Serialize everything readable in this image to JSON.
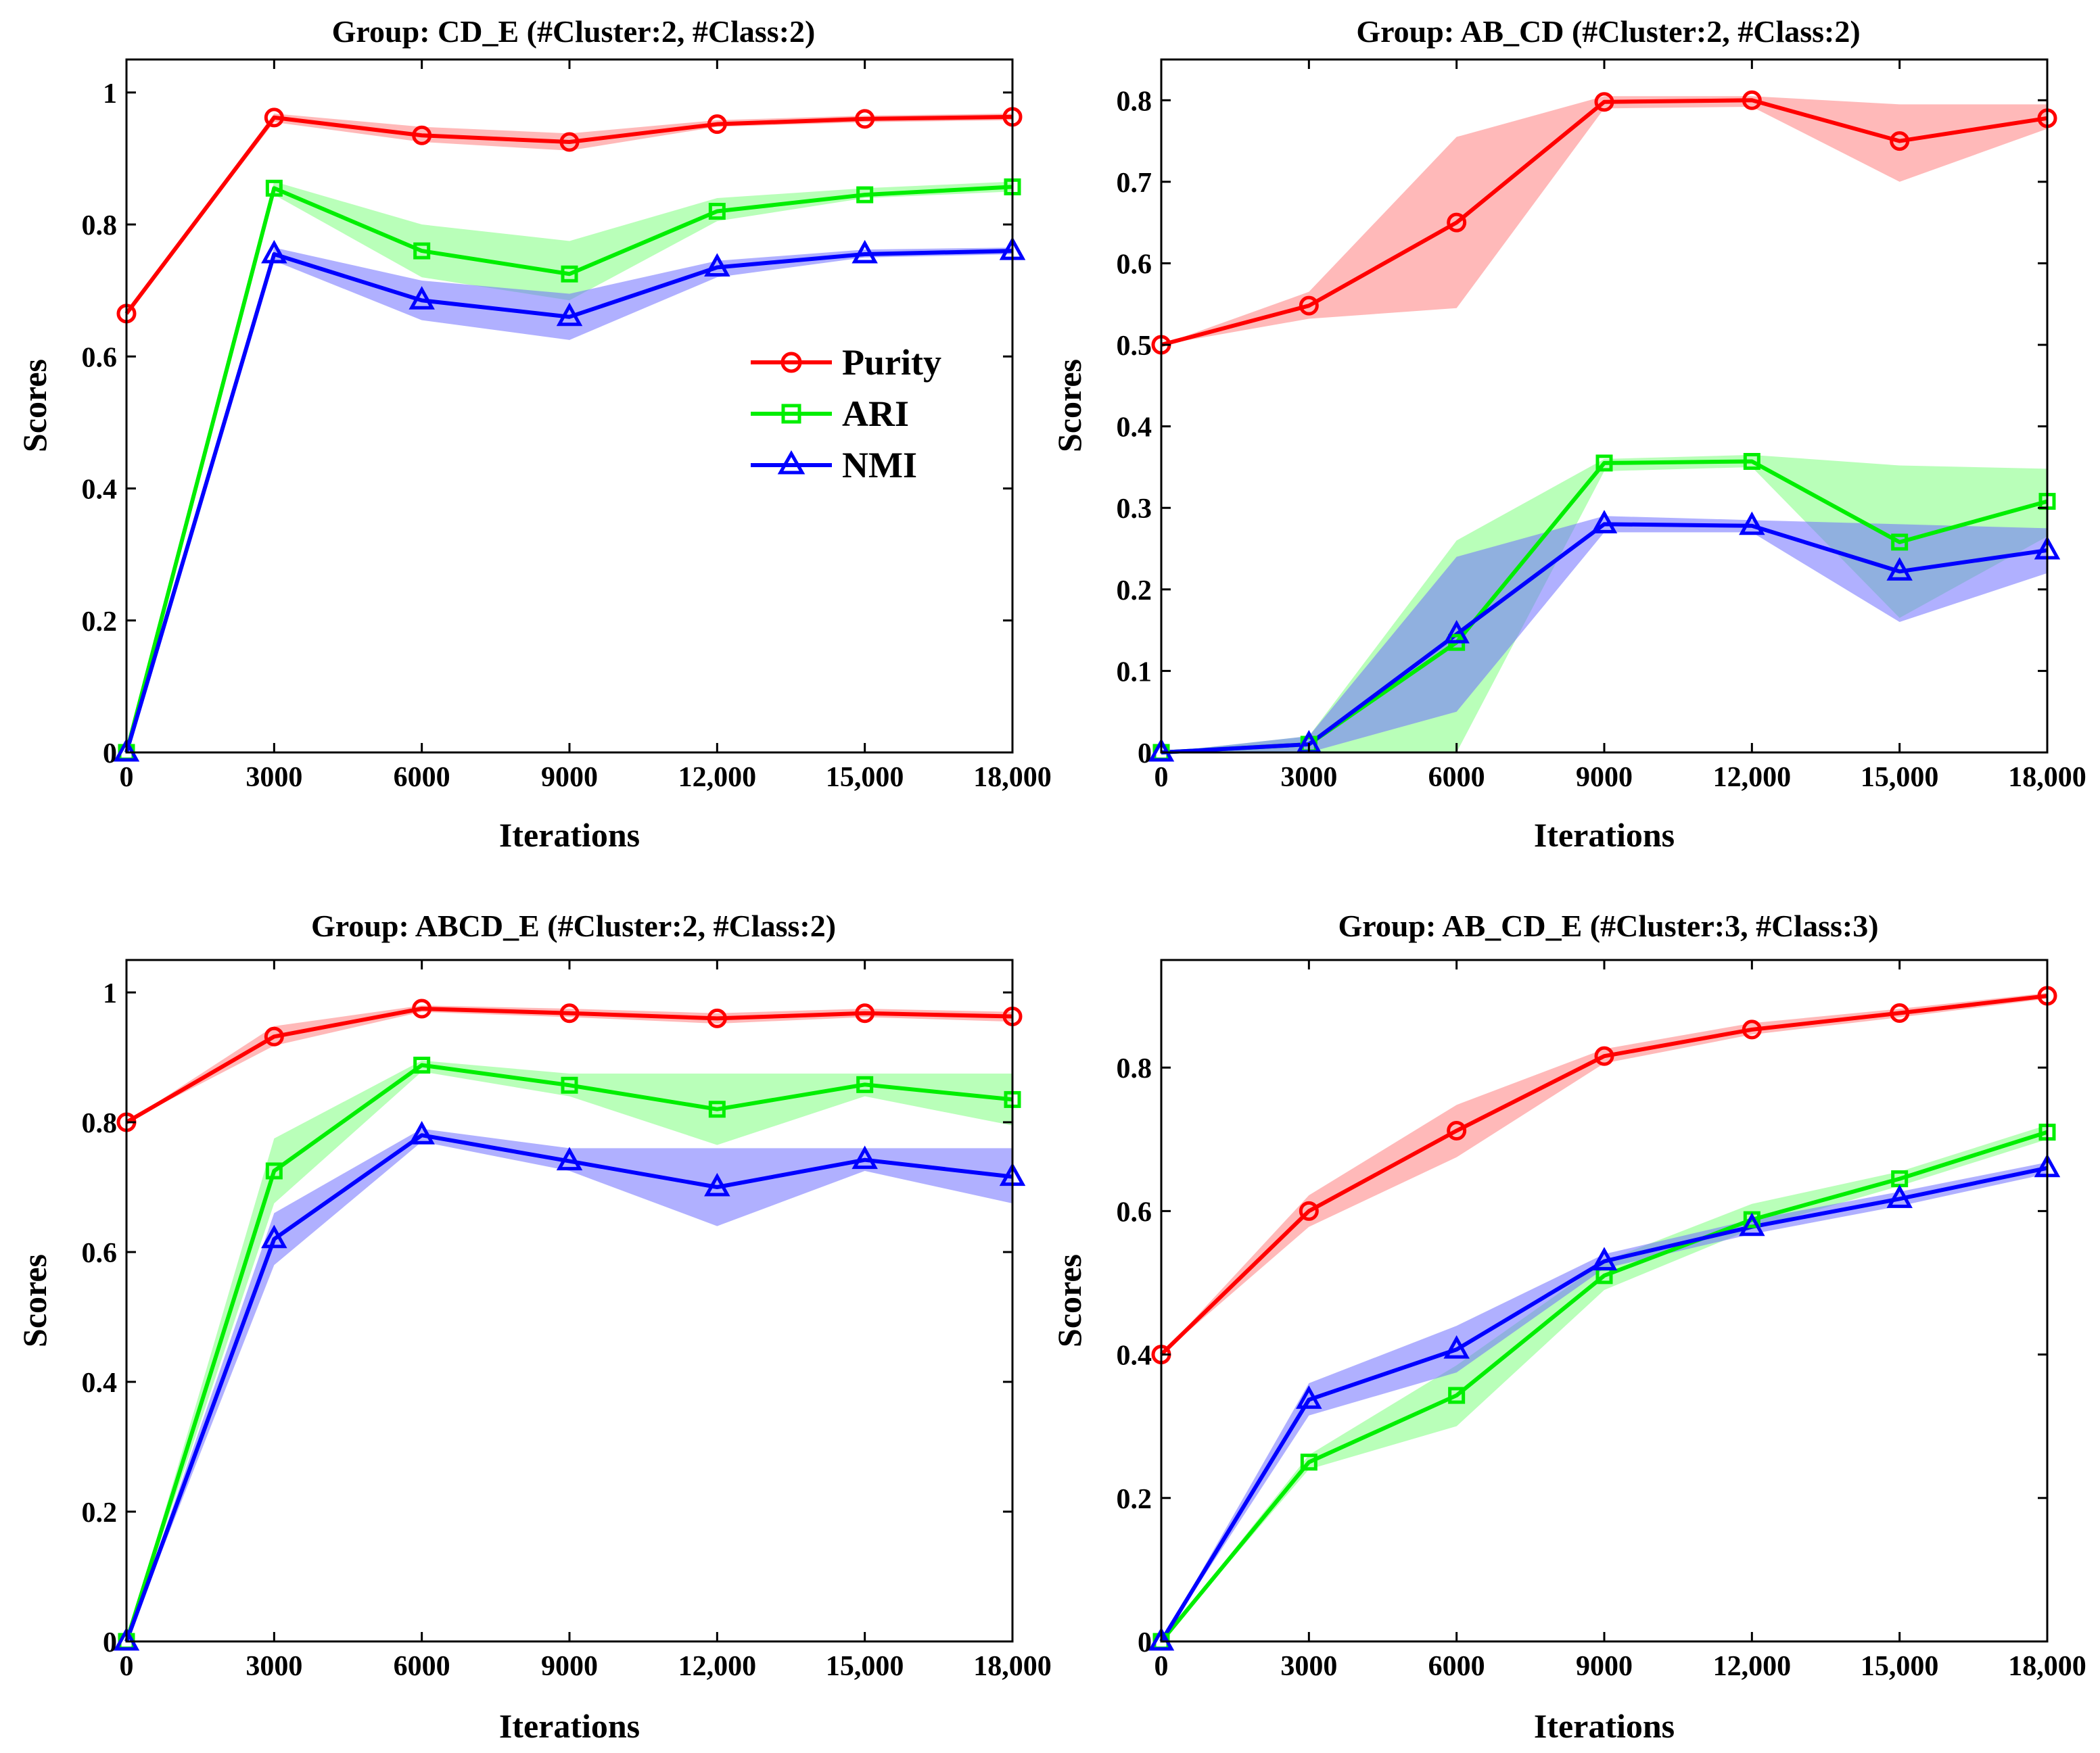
{
  "colors": {
    "purity": "#ff0000",
    "ari": "#00ee00",
    "nmi": "#0000ff",
    "purity_band": "#ff8080",
    "ari_band": "#80ff80",
    "nmi_band": "#7070ff"
  },
  "legend": {
    "purity": "Purity",
    "ari": "ARI",
    "nmi": "NMI"
  },
  "chart_data": [
    {
      "type": "line",
      "title": "Group: CD_E (#Cluster:2, #Class:2)",
      "xlabel": "Iterations",
      "ylabel": "Scores",
      "x": [
        0,
        3000,
        6000,
        9000,
        12000,
        15000,
        18000
      ],
      "xticklabels": [
        "0",
        "3000",
        "6000",
        "9000",
        "12,000",
        "15,000",
        "18,000"
      ],
      "xlim": [
        0,
        18000
      ],
      "ylim": [
        0,
        1.05
      ],
      "yticks": [
        0,
        0.2,
        0.4,
        0.6,
        0.8,
        1
      ],
      "yticklabels": [
        "0",
        "0.2",
        "0.4",
        "0.6",
        "0.8",
        "1"
      ],
      "legend_position": "center-right",
      "series": [
        {
          "name": "Purity",
          "key": "purity",
          "marker": "circle",
          "values": [
            0.665,
            0.962,
            0.935,
            0.925,
            0.952,
            0.96,
            0.963
          ],
          "lower": [
            0.665,
            0.955,
            0.925,
            0.912,
            0.948,
            0.955,
            0.958
          ],
          "upper": [
            0.665,
            0.968,
            0.948,
            0.938,
            0.958,
            0.965,
            0.968
          ]
        },
        {
          "name": "ARI",
          "key": "ari",
          "marker": "square",
          "values": [
            0,
            0.855,
            0.76,
            0.725,
            0.82,
            0.845,
            0.857
          ],
          "lower": [
            0,
            0.845,
            0.72,
            0.685,
            0.805,
            0.84,
            0.85
          ],
          "upper": [
            0,
            0.865,
            0.8,
            0.775,
            0.84,
            0.855,
            0.865
          ]
        },
        {
          "name": "NMI",
          "key": "nmi",
          "marker": "triangle",
          "values": [
            0,
            0.755,
            0.685,
            0.66,
            0.735,
            0.755,
            0.76
          ],
          "lower": [
            0,
            0.745,
            0.655,
            0.625,
            0.72,
            0.75,
            0.755
          ],
          "upper": [
            0,
            0.765,
            0.715,
            0.695,
            0.745,
            0.762,
            0.765
          ]
        }
      ]
    },
    {
      "type": "line",
      "title": "Group: AB_CD (#Cluster:2, #Class:2)",
      "xlabel": "Iterations",
      "ylabel": "Scores",
      "x": [
        0,
        3000,
        6000,
        9000,
        12000,
        15000,
        18000
      ],
      "xticklabels": [
        "0",
        "3000",
        "6000",
        "9000",
        "12,000",
        "15,000",
        "18,000"
      ],
      "xlim": [
        0,
        18000
      ],
      "ylim": [
        0,
        0.85
      ],
      "yticks": [
        0,
        0.1,
        0.2,
        0.3,
        0.4,
        0.5,
        0.6,
        0.7,
        0.8
      ],
      "yticklabels": [
        "0",
        "0.1",
        "0.2",
        "0.3",
        "0.4",
        "0.5",
        "0.6",
        "0.7",
        "0.8"
      ],
      "series": [
        {
          "name": "Purity",
          "key": "purity",
          "marker": "circle",
          "values": [
            0.5,
            0.548,
            0.65,
            0.798,
            0.8,
            0.75,
            0.778
          ],
          "lower": [
            0.5,
            0.532,
            0.545,
            0.79,
            0.792,
            0.7,
            0.765
          ],
          "upper": [
            0.5,
            0.565,
            0.755,
            0.805,
            0.805,
            0.795,
            0.795
          ]
        },
        {
          "name": "ARI",
          "key": "ari",
          "marker": "square",
          "values": [
            0,
            0.01,
            0.135,
            0.355,
            0.357,
            0.258,
            0.308
          ],
          "lower": [
            0,
            0,
            0,
            0.345,
            0.35,
            0.165,
            0.265
          ],
          "upper": [
            0,
            0.02,
            0.26,
            0.36,
            0.365,
            0.352,
            0.348
          ]
        },
        {
          "name": "NMI",
          "key": "nmi",
          "marker": "triangle",
          "values": [
            0,
            0.01,
            0.145,
            0.28,
            0.278,
            0.222,
            0.248
          ],
          "lower": [
            0,
            0,
            0.05,
            0.27,
            0.27,
            0.16,
            0.22
          ],
          "upper": [
            0,
            0.02,
            0.24,
            0.29,
            0.285,
            0.28,
            0.275
          ]
        }
      ]
    },
    {
      "type": "line",
      "title": "Group: ABCD_E (#Cluster:2, #Class:2)",
      "xlabel": "Iterations",
      "ylabel": "Scores",
      "x": [
        0,
        3000,
        6000,
        9000,
        12000,
        15000,
        18000
      ],
      "xticklabels": [
        "0",
        "3000",
        "6000",
        "9000",
        "12,000",
        "15,000",
        "18,000"
      ],
      "xlim": [
        0,
        18000
      ],
      "ylim": [
        0,
        1.05
      ],
      "yticks": [
        0,
        0.2,
        0.4,
        0.6,
        0.8,
        1
      ],
      "yticklabels": [
        "0",
        "0.2",
        "0.4",
        "0.6",
        "0.8",
        "1"
      ],
      "series": [
        {
          "name": "Purity",
          "key": "purity",
          "marker": "circle",
          "values": [
            0.8,
            0.932,
            0.975,
            0.968,
            0.96,
            0.968,
            0.963
          ],
          "lower": [
            0.8,
            0.918,
            0.97,
            0.962,
            0.952,
            0.962,
            0.955
          ],
          "upper": [
            0.8,
            0.948,
            0.98,
            0.975,
            0.968,
            0.975,
            0.97
          ]
        },
        {
          "name": "ARI",
          "key": "ari",
          "marker": "square",
          "values": [
            0,
            0.725,
            0.888,
            0.857,
            0.82,
            0.858,
            0.835
          ],
          "lower": [
            0,
            0.675,
            0.878,
            0.84,
            0.765,
            0.84,
            0.795
          ],
          "upper": [
            0,
            0.775,
            0.895,
            0.875,
            0.875,
            0.875,
            0.875
          ]
        },
        {
          "name": "NMI",
          "key": "nmi",
          "marker": "triangle",
          "values": [
            0,
            0.62,
            0.78,
            0.74,
            0.7,
            0.742,
            0.716
          ],
          "lower": [
            0,
            0.58,
            0.77,
            0.725,
            0.64,
            0.725,
            0.675
          ],
          "upper": [
            0,
            0.66,
            0.79,
            0.76,
            0.76,
            0.76,
            0.76
          ]
        }
      ]
    },
    {
      "type": "line",
      "title": "Group: AB_CD_E (#Cluster:3, #Class:3)",
      "xlabel": "Iterations",
      "ylabel": "Scores",
      "x": [
        0,
        3000,
        6000,
        9000,
        12000,
        15000,
        18000
      ],
      "xticklabels": [
        "0",
        "3000",
        "6000",
        "9000",
        "12,000",
        "15,000",
        "18,000"
      ],
      "xlim": [
        0,
        18000
      ],
      "ylim": [
        0,
        0.95
      ],
      "yticks": [
        0,
        0.2,
        0.4,
        0.6,
        0.8
      ],
      "yticklabels": [
        "0",
        "0.2",
        "0.4",
        "0.6",
        "0.8"
      ],
      "series": [
        {
          "name": "Purity",
          "key": "purity",
          "marker": "circle",
          "values": [
            0.4,
            0.6,
            0.712,
            0.816,
            0.853,
            0.876,
            0.9
          ],
          "lower": [
            0.4,
            0.578,
            0.675,
            0.806,
            0.846,
            0.87,
            0.896
          ],
          "upper": [
            0.4,
            0.622,
            0.748,
            0.826,
            0.862,
            0.882,
            0.904
          ]
        },
        {
          "name": "ARI",
          "key": "ari",
          "marker": "square",
          "values": [
            0,
            0.25,
            0.343,
            0.51,
            0.588,
            0.645,
            0.71
          ],
          "lower": [
            0,
            0.24,
            0.3,
            0.49,
            0.575,
            0.635,
            0.7
          ],
          "upper": [
            0,
            0.26,
            0.385,
            0.53,
            0.61,
            0.655,
            0.72
          ]
        },
        {
          "name": "NMI",
          "key": "nmi",
          "marker": "triangle",
          "values": [
            0,
            0.337,
            0.407,
            0.53,
            0.578,
            0.617,
            0.66
          ],
          "lower": [
            0,
            0.315,
            0.375,
            0.52,
            0.568,
            0.607,
            0.652
          ],
          "upper": [
            0,
            0.36,
            0.44,
            0.54,
            0.588,
            0.627,
            0.668
          ]
        }
      ]
    }
  ]
}
